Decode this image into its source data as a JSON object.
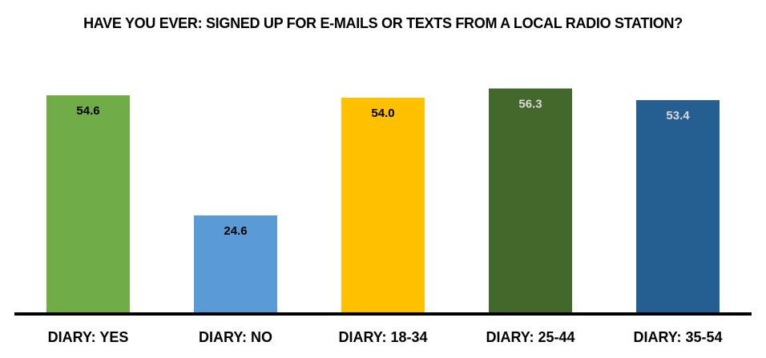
{
  "chart_data": {
    "type": "bar",
    "title": "HAVE YOU EVER: SIGNED UP FOR E-MAILS OR TEXTS FROM A LOCAL RADIO STATION?",
    "categories": [
      "DIARY: YES",
      "DIARY: NO",
      "DIARY: 18-34",
      "DIARY: 25-44",
      "DIARY: 35-54"
    ],
    "values": [
      54.6,
      24.6,
      54.0,
      56.3,
      53.4
    ],
    "value_labels": [
      "54.6",
      "24.6",
      "54.0",
      "56.3",
      "53.4"
    ],
    "colors": [
      "#70ad47",
      "#5b9bd5",
      "#ffc000",
      "#43682b",
      "#255e91"
    ],
    "value_label_colors": [
      "#000000",
      "#000000",
      "#000000",
      "#d9d9d9",
      "#d9d9d9"
    ],
    "ylim": [
      0,
      60
    ]
  }
}
